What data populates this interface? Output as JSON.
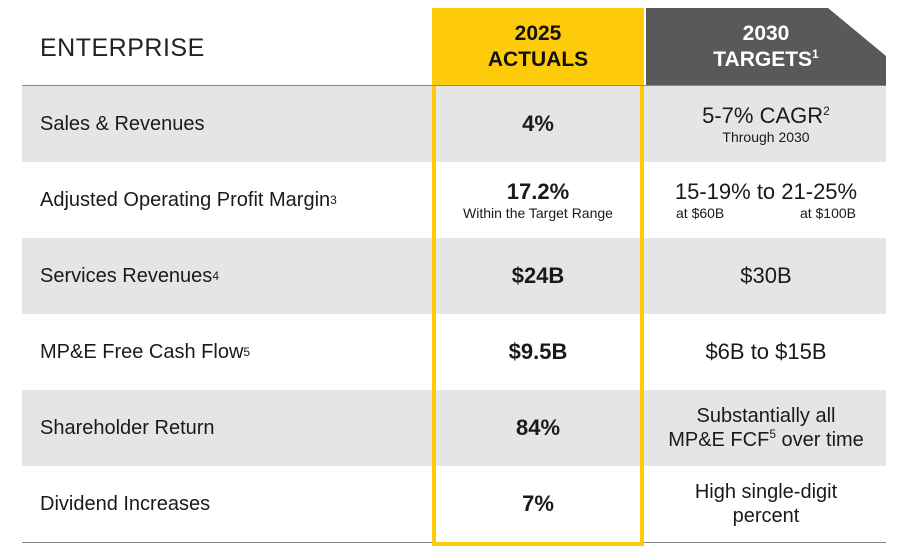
{
  "header": {
    "section_title": "ENTERPRISE",
    "actuals_line1": "2025",
    "actuals_line2": "ACTUALS",
    "targets_line1": "2030",
    "targets_line2": "TARGETS",
    "targets_footnote": "1"
  },
  "rows": [
    {
      "label": "Sales & Revenues",
      "label_footnote": "",
      "actual": "4%",
      "actual_sub": "",
      "target_main": "5-7% CAGR",
      "target_main_footnote": "2",
      "target_sub": "Through 2030"
    },
    {
      "label": "Adjusted Operating Profit Margin",
      "label_footnote": "3",
      "actual": "17.2%",
      "actual_sub": "Within the Target Range",
      "target_main": "15-19% to 21-25%",
      "target_sub_left": "at $60B",
      "target_sub_right": "at $100B"
    },
    {
      "label": "Services Revenues",
      "label_footnote": "4",
      "actual": "$24B",
      "target_main": "$30B"
    },
    {
      "label": "MP&E Free Cash Flow",
      "label_footnote": "5",
      "actual": "$9.5B",
      "target_main": "$6B to $15B"
    },
    {
      "label": "Shareholder Return",
      "label_footnote": "",
      "actual": "84%",
      "target_line1": "Substantially all",
      "target_line2_pre": "MP&E FCF",
      "target_line2_footnote": "5",
      "target_line2_post": " over time"
    },
    {
      "label": "Dividend Increases",
      "label_footnote": "",
      "actual": "7%",
      "target_line1": "High single-digit",
      "target_line2": "percent"
    }
  ],
  "colors": {
    "accent_yellow": "#fecb0a",
    "header_gray": "#595959",
    "row_shade": "#e5e5e5"
  }
}
